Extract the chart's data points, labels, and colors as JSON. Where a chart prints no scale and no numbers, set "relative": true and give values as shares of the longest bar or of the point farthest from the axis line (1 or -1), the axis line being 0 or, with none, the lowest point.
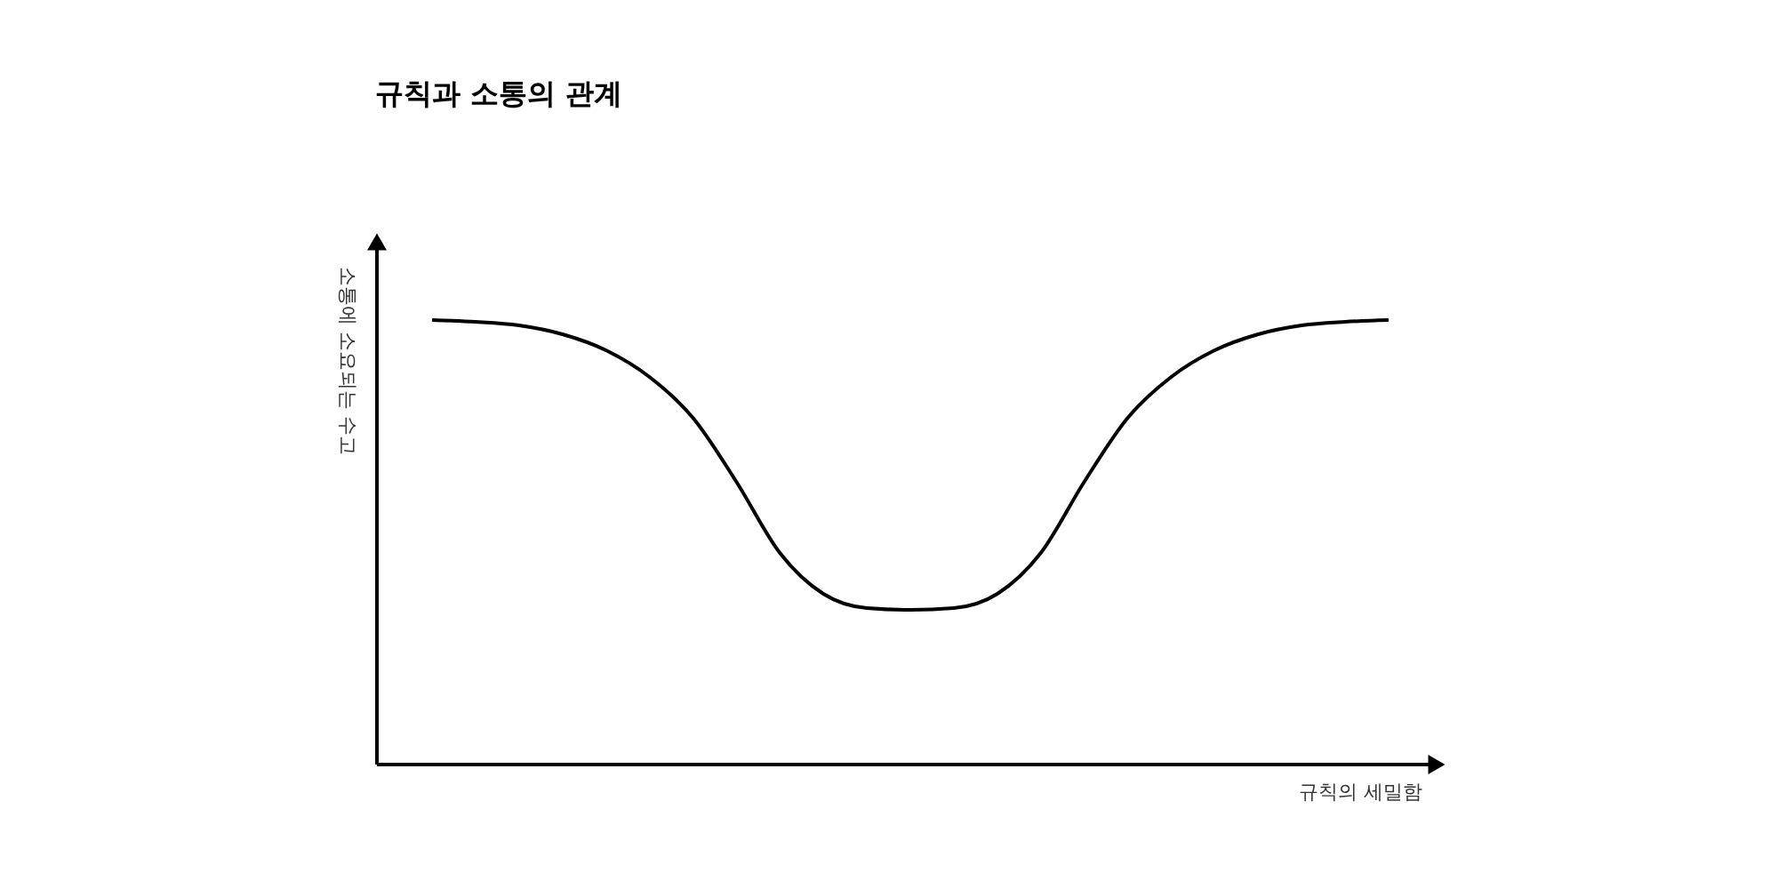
{
  "chart_data": {
    "type": "line",
    "title": "규칙과 소통의 관계",
    "xlabel": "규칙의 세밀함",
    "ylabel": "소통에 소요되는 수고",
    "relative": true,
    "color": "#000000",
    "categories": [
      null,
      null,
      null,
      null,
      null,
      null,
      null,
      null,
      null,
      null,
      null,
      null,
      null,
      null,
      null,
      null,
      null,
      null,
      null,
      null,
      null,
      null,
      null
    ],
    "values": [
      1.0,
      0.996,
      0.988,
      0.968,
      0.932,
      0.872,
      0.78,
      0.636,
      0.476,
      0.384,
      0.352,
      0.348,
      0.352,
      0.384,
      0.476,
      0.636,
      0.78,
      0.872,
      0.932,
      0.968,
      0.988,
      0.996,
      1.0
    ]
  }
}
